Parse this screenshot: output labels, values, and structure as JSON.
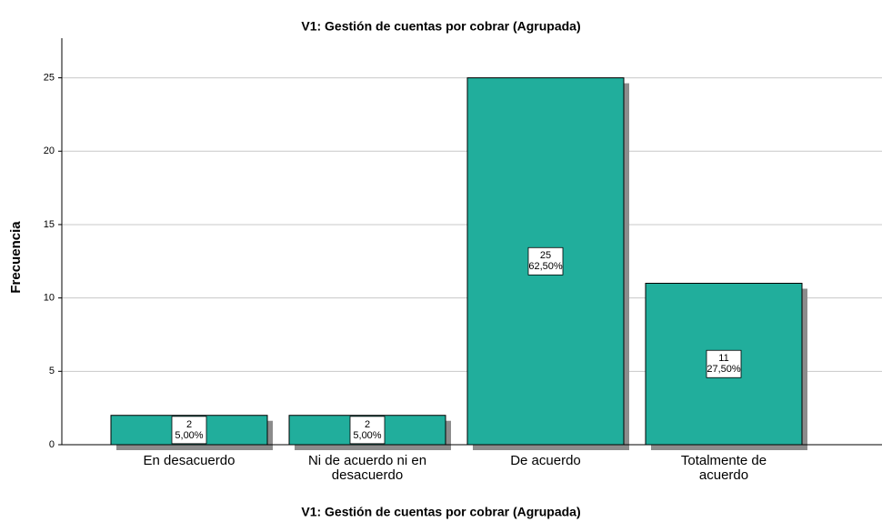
{
  "chart_data": {
    "type": "bar",
    "title": "V1: Gestión de cuentas por cobrar (Agrupada)",
    "x_label": "V1: Gestión de cuentas por cobrar (Agrupada)",
    "y_label": "Frecuencia",
    "categories": [
      "En desacuerdo",
      "Ni de acuerdo ni en desacuerdo",
      "De acuerdo",
      "Totalmente de acuerdo"
    ],
    "values": [
      2,
      2,
      25,
      11
    ],
    "percents": [
      5,
      5,
      62.5,
      27.5
    ],
    "percent_labels": [
      "5,00%",
      "5,00%",
      "62,50%",
      "27,50%"
    ],
    "color": "#21ae9c",
    "ylim": [
      0,
      27.7
    ],
    "yticks": [
      0,
      5,
      10,
      15,
      20,
      25
    ],
    "grid": true
  }
}
